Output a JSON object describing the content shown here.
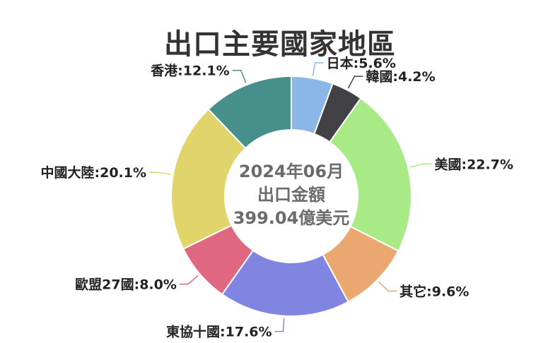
{
  "chart_data": {
    "type": "pie",
    "title": "出口主要國家地區",
    "center_text": [
      "2024年06月",
      "出口金額",
      "399.04億美元"
    ],
    "slices": [
      {
        "name": "日本",
        "value": 5.6,
        "label": "日本:5.6%",
        "color": "#8bb6e8"
      },
      {
        "name": "韓國",
        "value": 4.2,
        "label": "韓國:4.2%",
        "color": "#414146"
      },
      {
        "name": "美國",
        "value": 22.7,
        "label": "美國:22.7%",
        "color": "#a7ea86"
      },
      {
        "name": "其它",
        "value": 9.6,
        "label": "其它:9.6%",
        "color": "#eaa870"
      },
      {
        "name": "東協十國",
        "value": 17.6,
        "label": "東協十國:17.6%",
        "color": "#8085e2"
      },
      {
        "name": "歐盟27國",
        "value": 8.0,
        "label": "歐盟27國:8.0%",
        "color": "#df6780"
      },
      {
        "name": "中國大陸",
        "value": 20.1,
        "label": "中國大陸:20.1%",
        "color": "#e1d46a"
      },
      {
        "name": "香港",
        "value": 12.1,
        "label": "香港:12.1%",
        "color": "#468f8a"
      }
    ]
  }
}
